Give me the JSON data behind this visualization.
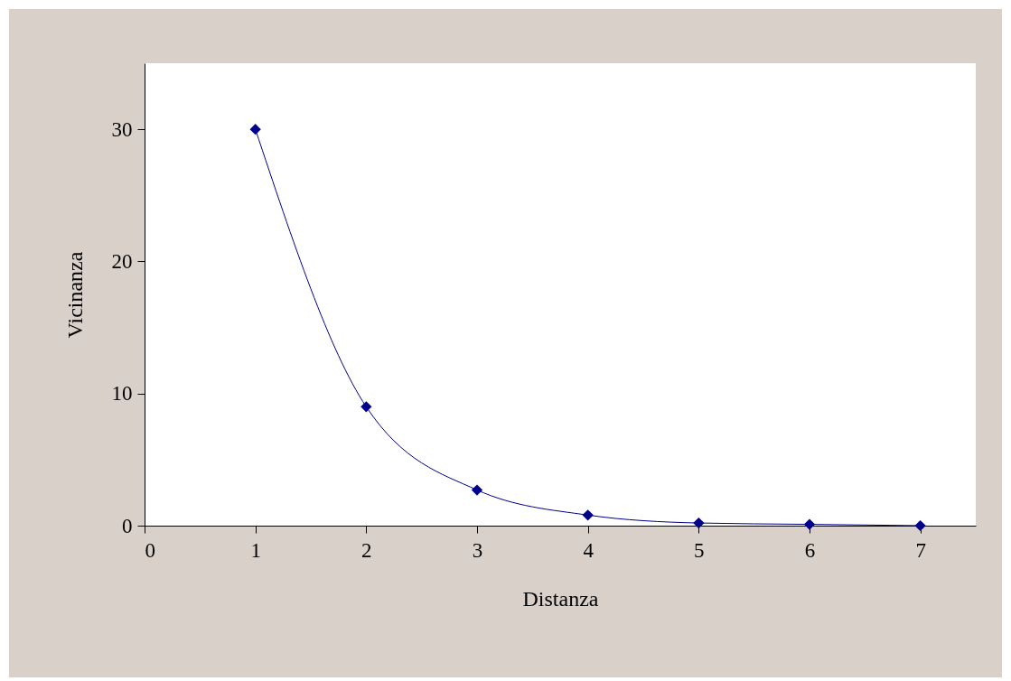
{
  "chart_data": {
    "type": "line",
    "xlabel": "Distanza",
    "ylabel": "Vicinanza",
    "x": [
      1,
      2,
      3,
      4,
      5,
      6,
      7
    ],
    "series": [
      {
        "color": "#00008b",
        "values": [
          30,
          9,
          2.7,
          0.8,
          0.2,
          0.1,
          0
        ]
      }
    ],
    "xlim": [
      0,
      7.5
    ],
    "xticks": [
      0,
      1,
      2,
      3,
      4,
      5,
      6,
      7
    ],
    "ylim": [
      0,
      35
    ],
    "yticks": [
      0,
      10,
      20,
      30
    ],
    "marker": "diamond",
    "line_style": "solid",
    "grid": false
  }
}
